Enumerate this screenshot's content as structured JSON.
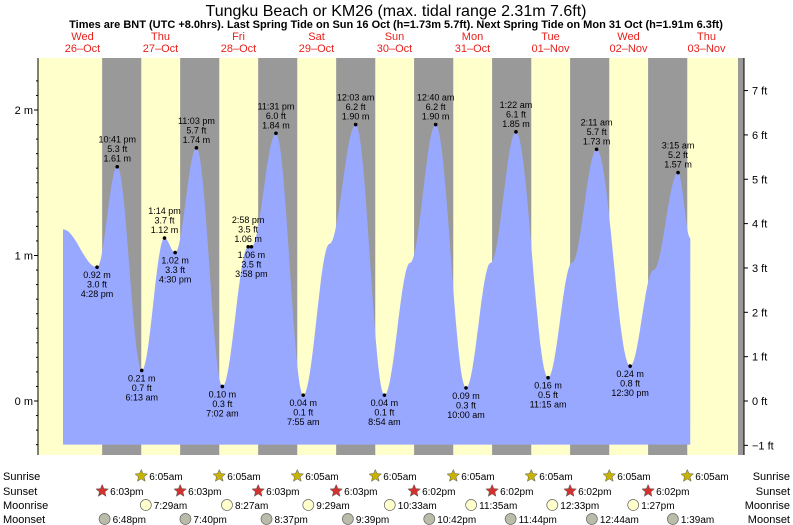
{
  "title": "Tungku Beach or KM26 (max. tidal range 2.31m 7.6ft)",
  "subtitle": "Times are BNT (UTC +8.0hrs). Last Spring Tide on Sun 16 Oct (h=1.73m 5.7ft). Next Spring Tide on Mon 31 Oct (h=1.91m 6.3ft)",
  "colors": {
    "day": "#ffffcc",
    "night": "#999999",
    "tide": "#99a8ff",
    "star_sun": "#c8b400",
    "star_sunset": "#d2322d",
    "moonrise": "#ffffcc",
    "moonset": "#bbbbaa",
    "daytext": "#e8201b"
  },
  "days": [
    {
      "dow": "Wed",
      "date": "26–Oct"
    },
    {
      "dow": "Thu",
      "date": "27–Oct"
    },
    {
      "dow": "Fri",
      "date": "28–Oct"
    },
    {
      "dow": "Sat",
      "date": "29–Oct"
    },
    {
      "dow": "Sun",
      "date": "30–Oct"
    },
    {
      "dow": "Mon",
      "date": "31–Oct"
    },
    {
      "dow": "Tue",
      "date": "01–Nov"
    },
    {
      "dow": "Wed",
      "date": "02–Nov"
    },
    {
      "dow": "Thu",
      "date": "03–Nov"
    }
  ],
  "chart_data": {
    "type": "area",
    "x_unit": "hours from 26-Oct 00:00 (BNT)",
    "y_unit": "m",
    "ylim_m": [
      -0.35,
      2.3
    ],
    "y_ticks_m": [
      {
        "v": 0,
        "label": "0 m"
      },
      {
        "v": 1,
        "label": "1 m"
      },
      {
        "v": 2,
        "label": "2 m"
      }
    ],
    "y_ticks_ft": [
      {
        "v": -1,
        "label": "−1 ft"
      },
      {
        "v": 0,
        "label": "0 ft"
      },
      {
        "v": 1,
        "label": "1 ft"
      },
      {
        "v": 2,
        "label": "2 ft"
      },
      {
        "v": 3,
        "label": "3 ft"
      },
      {
        "v": 4,
        "label": "4 ft"
      },
      {
        "v": 5,
        "label": "5 ft"
      },
      {
        "v": 6,
        "label": "6 ft"
      },
      {
        "v": 7,
        "label": "7 ft"
      }
    ],
    "tides": [
      {
        "t": 6.0,
        "h": 1.18,
        "labels": []
      },
      {
        "t": 16.47,
        "h": 0.92,
        "labels": [
          "0.92 m",
          "3.0 ft",
          "4:28 pm"
        ],
        "pos": "below"
      },
      {
        "t": 22.68,
        "h": 1.61,
        "labels": [
          "10:41 pm",
          "5.3 ft",
          "1.61 m"
        ],
        "pos": "above"
      },
      {
        "t": 30.22,
        "h": 0.21,
        "labels": [
          "0.21 m",
          "0.7 ft",
          "6:13 am"
        ],
        "pos": "below"
      },
      {
        "t": 37.23,
        "h": 1.12,
        "labels": [
          "1:14 pm",
          "3.7 ft",
          "1.12 m"
        ],
        "pos": "above"
      },
      {
        "t": 40.5,
        "h": 1.02,
        "labels": [
          "1.02 m",
          "3.3 ft",
          "4:30 pm"
        ],
        "pos": "below"
      },
      {
        "t": 47.05,
        "h": 1.74,
        "labels": [
          "11:03 pm",
          "5.7 ft",
          "1.74 m"
        ],
        "pos": "above"
      },
      {
        "t": 55.03,
        "h": 0.1,
        "labels": [
          "0.10 m",
          "0.3 ft",
          "7:02 am"
        ],
        "pos": "below"
      },
      {
        "t": 62.97,
        "h": 1.06,
        "labels": [
          "2:58 pm",
          "3.5 ft",
          "1.06 m"
        ],
        "pos": "above"
      },
      {
        "t": 63.97,
        "h": 1.06,
        "labels": [
          "1.06 m",
          "3.5 ft",
          "3:58 pm"
        ],
        "pos": "below"
      },
      {
        "t": 71.52,
        "h": 1.84,
        "labels": [
          "11:31 pm",
          "6.0 ft",
          "1.84 m"
        ],
        "pos": "above"
      },
      {
        "t": 79.92,
        "h": 0.04,
        "labels": [
          "0.04 m",
          "0.1 ft",
          "7:55 am"
        ],
        "pos": "below"
      },
      {
        "t": 96.05,
        "h": 1.9,
        "labels": [
          "12:03 am",
          "6.2 ft",
          "1.90 m"
        ],
        "pos": "above"
      },
      {
        "t": 104.9,
        "h": 0.04,
        "labels": [
          "0.04 m",
          "0.1 ft",
          "8:54 am"
        ],
        "pos": "below"
      },
      {
        "t": 120.67,
        "h": 1.9,
        "labels": [
          "12:40 am",
          "6.2 ft",
          "1.90 m"
        ],
        "pos": "above"
      },
      {
        "t": 130.0,
        "h": 0.09,
        "labels": [
          "0.09 m",
          "0.3 ft",
          "10:00 am"
        ],
        "pos": "below"
      },
      {
        "t": 145.37,
        "h": 1.85,
        "labels": [
          "1:22 am",
          "6.1 ft",
          "1.85 m"
        ],
        "pos": "above"
      },
      {
        "t": 155.25,
        "h": 0.16,
        "labels": [
          "0.16 m",
          "0.5 ft",
          "11:15 am"
        ],
        "pos": "below"
      },
      {
        "t": 170.18,
        "h": 1.73,
        "labels": [
          "2:11 am",
          "5.7 ft",
          "1.73 m"
        ],
        "pos": "above"
      },
      {
        "t": 180.5,
        "h": 0.24,
        "labels": [
          "0.24 m",
          "0.8 ft",
          "12:30 pm"
        ],
        "pos": "below"
      },
      {
        "t": 195.25,
        "h": 1.57,
        "labels": [
          "3:15 am",
          "5.2 ft",
          "1.57 m"
        ],
        "pos": "above"
      },
      {
        "t": 199.0,
        "h": 1.12,
        "labels": []
      }
    ],
    "midpoints": [
      {
        "t": 88.0,
        "h": 1.08
      },
      {
        "t": 112.8,
        "h": 0.95
      },
      {
        "t": 137.6,
        "h": 0.95
      },
      {
        "t": 162.6,
        "h": 0.95
      },
      {
        "t": 187.7,
        "h": 0.9
      }
    ],
    "data_start_t": 6.0,
    "data_end_t": 199.0
  },
  "rows": {
    "sunrise": {
      "label": "Sunrise",
      "times": [
        {
          "t": 30.08,
          "text": "6:05am"
        },
        {
          "t": 54.08,
          "text": "6:05am"
        },
        {
          "t": 78.08,
          "text": "6:05am"
        },
        {
          "t": 102.08,
          "text": "6:05am"
        },
        {
          "t": 126.08,
          "text": "6:05am"
        },
        {
          "t": 150.08,
          "text": "6:05am"
        },
        {
          "t": 174.08,
          "text": "6:05am"
        },
        {
          "t": 198.08,
          "text": "6:05am"
        }
      ]
    },
    "sunset": {
      "label": "Sunset",
      "times": [
        {
          "t": 18.05,
          "text": "6:03pm"
        },
        {
          "t": 42.05,
          "text": "6:03pm"
        },
        {
          "t": 66.05,
          "text": "6:03pm"
        },
        {
          "t": 90.05,
          "text": "6:03pm"
        },
        {
          "t": 114.03,
          "text": "6:02pm"
        },
        {
          "t": 138.03,
          "text": "6:02pm"
        },
        {
          "t": 162.03,
          "text": "6:02pm"
        },
        {
          "t": 186.03,
          "text": "6:02pm"
        }
      ]
    },
    "moonrise": {
      "label": "Moonrise",
      "times": [
        {
          "t": 31.48,
          "text": "7:29am"
        },
        {
          "t": 56.45,
          "text": "8:27am"
        },
        {
          "t": 81.48,
          "text": "9:29am"
        },
        {
          "t": 106.55,
          "text": "10:33am"
        },
        {
          "t": 131.58,
          "text": "11:35am"
        },
        {
          "t": 156.55,
          "text": "12:33pm"
        },
        {
          "t": 181.45,
          "text": "1:27pm"
        }
      ]
    },
    "moonset": {
      "label": "Moonset",
      "times": [
        {
          "t": 18.8,
          "text": "6:48pm"
        },
        {
          "t": 43.67,
          "text": "7:40pm"
        },
        {
          "t": 68.62,
          "text": "8:37pm"
        },
        {
          "t": 93.65,
          "text": "9:39pm"
        },
        {
          "t": 118.7,
          "text": "10:42pm"
        },
        {
          "t": 143.73,
          "text": "11:44pm"
        },
        {
          "t": 168.73,
          "text": "12:44am"
        },
        {
          "t": 193.65,
          "text": "1:39am"
        }
      ]
    }
  }
}
